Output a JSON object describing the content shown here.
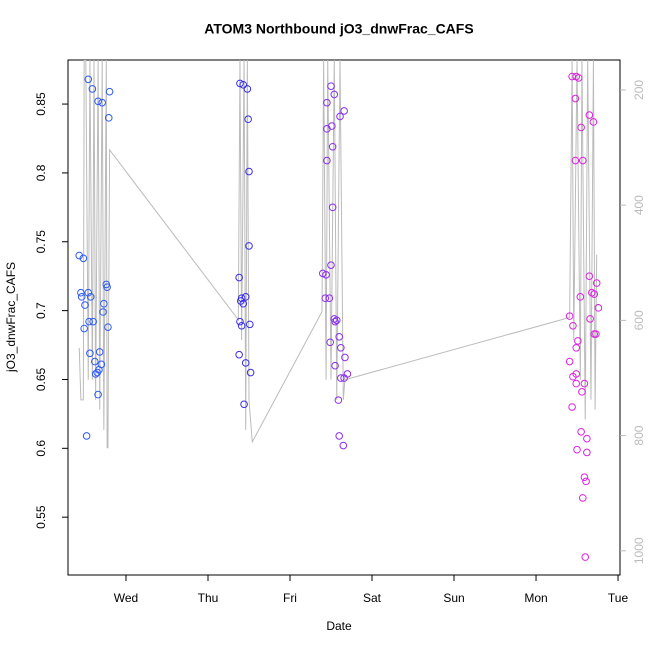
{
  "chart_data": {
    "type": "scatter",
    "title": "ATOM3 Northbound jO3_dnwFrac_CAFS",
    "xlabel": "Date",
    "ylabel": "jO3_dnwFrac_CAFS",
    "xlim": [
      -0.707,
      6.024
    ],
    "xticks": [
      {
        "value": 0,
        "label": "Wed"
      },
      {
        "value": 1,
        "label": "Thu"
      },
      {
        "value": 2,
        "label": "Fri"
      },
      {
        "value": 3,
        "label": "Sat"
      },
      {
        "value": 4,
        "label": "Sun"
      },
      {
        "value": 5,
        "label": "Mon"
      },
      {
        "value": 6,
        "label": "Tue"
      }
    ],
    "ylim": [
      0.508,
      0.882
    ],
    "yticks": [
      0.55,
      0.6,
      0.65,
      0.7,
      0.75,
      0.8,
      0.85
    ],
    "y2lim": [
      148,
      1042
    ],
    "y2_inverted": true,
    "y2ticks": [
      200,
      400,
      600,
      800,
      1000
    ],
    "y2tick_color": "#bbbbbb",
    "series": [
      {
        "type": "scatter",
        "color": "#2f5cf0",
        "x": [
          -0.57,
          -0.52,
          -0.55,
          -0.54,
          -0.51,
          -0.5,
          -0.46,
          -0.41,
          -0.34,
          -0.29,
          -0.2,
          -0.21,
          -0.46,
          -0.43,
          -0.45,
          -0.4,
          -0.44,
          -0.38,
          -0.37,
          -0.33,
          -0.34,
          -0.32,
          -0.3,
          -0.27,
          -0.28,
          -0.24,
          -0.23,
          -0.22,
          -0.48,
          -0.35
        ],
        "values": [
          0.74,
          0.738,
          0.713,
          0.71,
          0.687,
          0.704,
          0.868,
          0.861,
          0.852,
          0.851,
          0.859,
          0.84,
          0.713,
          0.71,
          0.692,
          0.692,
          0.669,
          0.663,
          0.654,
          0.657,
          0.639,
          0.67,
          0.661,
          0.705,
          0.699,
          0.719,
          0.717,
          0.688,
          0.609,
          0.655
        ]
      },
      {
        "type": "scatter",
        "color": "#3a2fe8",
        "x": [
          1.39,
          1.43,
          1.48,
          1.49,
          1.5,
          1.5,
          1.38,
          1.41,
          1.4,
          1.43,
          1.41,
          1.39,
          1.46,
          1.51,
          1.38,
          1.46,
          1.52,
          1.44
        ],
        "values": [
          0.865,
          0.864,
          0.861,
          0.839,
          0.801,
          0.747,
          0.724,
          0.709,
          0.707,
          0.705,
          0.689,
          0.692,
          0.71,
          0.69,
          0.668,
          0.662,
          0.655,
          0.632
        ]
      },
      {
        "type": "scatter",
        "color": "#8a2ff0",
        "x": [
          2.5,
          2.45,
          2.54,
          2.66,
          2.61,
          2.45,
          2.51,
          2.52,
          2.45,
          2.52,
          2.5,
          2.4,
          2.44,
          2.43,
          2.48,
          2.54,
          2.55,
          2.57,
          2.49,
          2.6,
          2.62,
          2.67,
          2.55,
          2.7,
          2.62,
          2.66,
          2.59,
          2.6,
          2.65
        ],
        "values": [
          0.863,
          0.851,
          0.857,
          0.845,
          0.841,
          0.832,
          0.834,
          0.819,
          0.809,
          0.775,
          0.733,
          0.727,
          0.726,
          0.709,
          0.709,
          0.694,
          0.692,
          0.693,
          0.677,
          0.681,
          0.673,
          0.666,
          0.66,
          0.654,
          0.651,
          0.651,
          0.635,
          0.609,
          0.602
        ]
      },
      {
        "type": "scatter",
        "color": "#dd22e0",
        "x": [
          5.44,
          5.49,
          5.52,
          5.48,
          5.55,
          5.57,
          5.48,
          5.65,
          5.7,
          5.54,
          5.41,
          5.45,
          5.65,
          5.68,
          5.71,
          5.74,
          5.76,
          5.66,
          5.51,
          5.49,
          5.71,
          5.73,
          5.41,
          5.49,
          5.45,
          5.59,
          5.49,
          5.56,
          5.44,
          5.55,
          5.62,
          5.5,
          5.62,
          5.59,
          5.61,
          5.57,
          5.6
        ],
        "values": [
          0.87,
          0.87,
          0.869,
          0.854,
          0.833,
          0.809,
          0.809,
          0.842,
          0.837,
          0.71,
          0.696,
          0.689,
          0.725,
          0.713,
          0.712,
          0.72,
          0.702,
          0.694,
          0.678,
          0.673,
          0.683,
          0.683,
          0.663,
          0.654,
          0.652,
          0.647,
          0.647,
          0.641,
          0.63,
          0.612,
          0.607,
          0.599,
          0.597,
          0.579,
          0.576,
          0.564,
          0.521
        ]
      },
      {
        "type": "line",
        "axis": "y2",
        "color": "#bbbbbb",
        "x": [
          -0.57,
          -0.55,
          -0.52,
          -0.51,
          -0.49,
          -0.46,
          -0.44,
          -0.41,
          -0.39,
          -0.37,
          -0.34,
          -0.32,
          -0.29,
          -0.27,
          -0.24,
          -0.23,
          -0.22,
          -0.2,
          1.37,
          1.39,
          1.41,
          1.44,
          1.46,
          1.48,
          1.5,
          1.54,
          2.39,
          2.41,
          2.44,
          2.46,
          2.5,
          2.54,
          2.57,
          2.61,
          2.65,
          2.67,
          5.41,
          5.44,
          5.46,
          5.5,
          5.54,
          5.56,
          5.6,
          5.63,
          5.67,
          5.7,
          5.72,
          5.74
        ],
        "values": [
          648,
          738,
          738,
          148,
          148,
          703,
          148,
          703,
          148,
          738,
          148,
          755,
          148,
          790,
          148,
          821,
          821,
          304,
          599,
          148,
          634,
          148,
          790,
          148,
          738,
          811,
          585,
          148,
          703,
          148,
          703,
          148,
          738,
          148,
          738,
          703,
          595,
          148,
          634,
          148,
          703,
          148,
          772,
          148,
          738,
          148,
          755,
          486
        ]
      }
    ]
  }
}
